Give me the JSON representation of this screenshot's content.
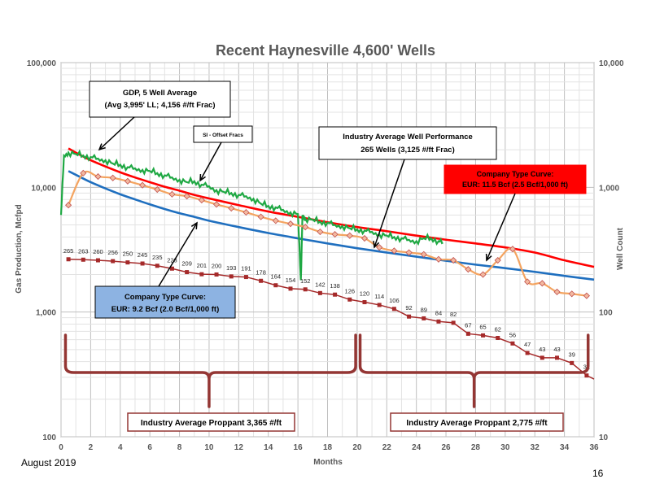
{
  "chart_data": {
    "type": "line",
    "title": "Recent Haynesville 4,600' Wells",
    "xlabel": "Months",
    "ylabel": "Gas Production, Mcfpd",
    "y2label": "Well Count",
    "xlim": [
      0,
      36
    ],
    "ylim": [
      100,
      100000
    ],
    "y2lim": [
      10,
      10000
    ],
    "yscale": "log",
    "grid": true,
    "x_ticks": [
      "0",
      "2",
      "4",
      "6",
      "8",
      "10",
      "12",
      "14",
      "16",
      "18",
      "20",
      "22",
      "24",
      "26",
      "28",
      "30",
      "32",
      "34",
      "36"
    ],
    "y_ticks": [
      "100",
      "1,000",
      "10,000",
      "100,000"
    ],
    "y2_ticks": [
      "10",
      "100",
      "1,000",
      "10,000"
    ],
    "series": [
      {
        "name": "Industry Average Well Performance",
        "color": "#f4a460",
        "x": [
          0.5,
          1.5,
          2.5,
          3.5,
          4.5,
          5.5,
          6.5,
          7.5,
          8.5,
          9.5,
          10.5,
          11.5,
          12.5,
          13.5,
          14.5,
          15.5,
          16.5,
          17.5,
          18.5,
          19.5,
          20.5,
          21.5,
          22.5,
          23.5,
          24.5,
          25.5,
          26.5,
          27.5,
          28.5,
          29.5,
          30.5,
          31.5,
          32.5,
          33.5,
          34.5,
          35.5
        ],
        "y": [
          7200,
          13000,
          12200,
          11900,
          11200,
          10400,
          9600,
          8800,
          8500,
          7900,
          7300,
          6800,
          6300,
          5800,
          5400,
          5100,
          4800,
          4400,
          4200,
          4100,
          3900,
          3300,
          3100,
          3000,
          2900,
          2650,
          2600,
          2200,
          2000,
          2600,
          3200,
          1750,
          1700,
          1450,
          1400,
          1350
        ]
      },
      {
        "name": "GDP, 5 Well Average",
        "color": "#1fa843",
        "x": [
          0,
          0.2,
          0.5,
          1,
          1.5,
          2,
          2.5,
          3,
          3.5,
          4,
          4.5,
          5,
          5.5,
          6,
          6.5,
          7,
          7.5,
          8,
          8.5,
          9,
          9.5,
          10,
          10.5,
          11,
          11.5,
          12,
          12.5,
          13,
          13.5,
          14,
          14.5,
          15,
          15.5,
          16,
          16.2,
          16.3,
          16.4,
          16.5,
          17,
          17.5,
          18,
          18.5,
          19,
          19.5,
          20,
          20.5,
          21,
          21.5,
          22,
          22.5,
          23,
          23.5,
          24,
          24.5,
          25,
          25.5,
          25.8
        ],
        "y": [
          6000,
          18000,
          19000,
          18500,
          18000,
          17500,
          17000,
          16500,
          15500,
          15200,
          14500,
          14200,
          13800,
          13500,
          13000,
          12500,
          12000,
          11500,
          11000,
          11200,
          10500,
          10200,
          9500,
          9200,
          9000,
          8700,
          8500,
          8100,
          7400,
          7100,
          6900,
          6600,
          6300,
          6100,
          1800,
          5800,
          5700,
          5600,
          5500,
          5300,
          5200,
          5000,
          4900,
          4700,
          4600,
          4500,
          4400,
          4200,
          4100,
          4000,
          3900,
          3800,
          3700,
          3900,
          3900,
          3700,
          3600
        ]
      },
      {
        "name": "Company Type Curve: EUR: 11.5 Bcf (2.5 Bcf/1,000 ft)",
        "color": "#ff0000",
        "x": [
          0.5,
          1,
          2,
          3,
          4,
          5,
          6,
          7,
          8,
          9,
          10,
          12,
          14,
          16,
          18,
          20,
          22,
          24,
          26,
          28,
          30,
          32,
          34,
          36
        ],
        "y": [
          20500,
          19000,
          16500,
          14700,
          13200,
          12000,
          11000,
          10100,
          9400,
          8700,
          8150,
          7200,
          6400,
          5800,
          5250,
          4800,
          4450,
          4100,
          3800,
          3550,
          3300,
          3000,
          2600,
          2300
        ]
      },
      {
        "name": "Company Type Curve: EUR: 9.2 Bcf (2.0 Bcf/1,000 ft)",
        "color": "#1f6fbf",
        "x": [
          0.5,
          1,
          2,
          3,
          4,
          5,
          6,
          7,
          8,
          9,
          10,
          12,
          14,
          16,
          18,
          20,
          22,
          24,
          26,
          28,
          30,
          32,
          34,
          36
        ],
        "y": [
          13500,
          12600,
          11000,
          9800,
          8800,
          8000,
          7300,
          6700,
          6200,
          5800,
          5400,
          4800,
          4300,
          3900,
          3550,
          3250,
          3000,
          2780,
          2580,
          2400,
          2250,
          2100,
          1950,
          1820
        ]
      },
      {
        "name": "Well Count",
        "color": "#a52a2a",
        "axis": "right",
        "x": [
          0.5,
          1.5,
          2.5,
          3.5,
          4.5,
          5.5,
          6.5,
          7.5,
          8.5,
          9.5,
          10.5,
          11.5,
          12.5,
          13.5,
          14.5,
          15.5,
          16.5,
          17.5,
          18.5,
          19.5,
          20.5,
          21.5,
          22.5,
          23.5,
          24.5,
          25.5,
          26.5,
          27.5,
          28.5,
          29.5,
          30.5,
          31.5,
          32.5,
          33.5,
          34.5,
          35.5
        ],
        "y": [
          265,
          263,
          260,
          256,
          250,
          245,
          235,
          223,
          209,
          201,
          200,
          193,
          191,
          178,
          164,
          154,
          152,
          142,
          138,
          126,
          120,
          114,
          106,
          92,
          89,
          84,
          82,
          67,
          65,
          62,
          56,
          47,
          43,
          43,
          39,
          31
        ],
        "labels": [
          "265",
          "263",
          "260",
          "256",
          "250",
          "245",
          "235",
          "223",
          "209",
          "201",
          "200",
          "193",
          "191",
          "178",
          "164",
          "154",
          "152",
          "142",
          "138",
          "126",
          "120",
          "114",
          "106",
          "92",
          "89",
          "84",
          "82",
          "67",
          "65",
          "62",
          "56",
          "47",
          "43",
          "43",
          "39",
          "31"
        ]
      }
    ],
    "annotations": [
      {
        "text": [
          "GDP, 5 Well Average",
          "(Avg 3,995' LL; 4,156 #/ft Frac)"
        ]
      },
      {
        "text": [
          "SI - Offset Fracs"
        ]
      },
      {
        "text": [
          "Industry Average Well Performance",
          "265 Wells (3,125 #/ft Frac)"
        ]
      },
      {
        "text": [
          "Company Type Curve:",
          "EUR: 11.5 Bcf (2.5 Bcf/1,000 ft)"
        ]
      },
      {
        "text": [
          "Company Type Curve:",
          "EUR: 9.2 Bcf (2.0 Bcf/1,000 ft)"
        ]
      },
      {
        "text": [
          "Industry Average Proppant 3,365 #/ft"
        ]
      },
      {
        "text": [
          "Industry Average Proppant 2,775 #/ft"
        ]
      }
    ]
  },
  "footer": {
    "date": "August 2019",
    "page": "16"
  }
}
